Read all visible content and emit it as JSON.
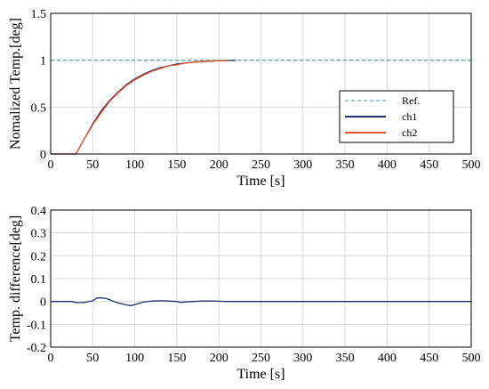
{
  "chart_data": [
    {
      "type": "line",
      "title": "",
      "xlabel": "Time [s]",
      "ylabel": "Nomalized Temp.[deg]",
      "xlim": [
        0,
        500
      ],
      "ylim": [
        0,
        1.5
      ],
      "xticks": [
        "0",
        "50",
        "100",
        "150",
        "200",
        "250",
        "300",
        "350",
        "400",
        "450",
        "500"
      ],
      "yticks": [
        "0",
        "0.5",
        "1",
        "1.5"
      ],
      "grid": true,
      "legend_position": "lower-right",
      "series": [
        {
          "name": "Ref.",
          "style": "dashed",
          "color": "#2f8f8f",
          "x": [
            0,
            500
          ],
          "y": [
            1,
            1
          ]
        },
        {
          "name": "ch1",
          "style": "solid",
          "color": "#1f2f6f",
          "x": [
            0,
            30,
            40,
            50,
            60,
            70,
            80,
            90,
            100,
            110,
            120,
            130,
            140,
            150,
            160,
            170,
            180,
            190,
            200,
            210,
            220
          ],
          "y": [
            0,
            0,
            0.16,
            0.32,
            0.46,
            0.57,
            0.66,
            0.74,
            0.8,
            0.85,
            0.89,
            0.92,
            0.94,
            0.96,
            0.97,
            0.98,
            0.985,
            0.99,
            0.995,
            0.997,
            1.0
          ]
        },
        {
          "name": "ch2",
          "style": "solid",
          "color": "#e0552a",
          "x": [
            0,
            30,
            40,
            50,
            60,
            70,
            80,
            90,
            100,
            110,
            120,
            130,
            140,
            150,
            160,
            170,
            180,
            190,
            200,
            210
          ],
          "y": [
            0,
            0,
            0.16,
            0.31,
            0.44,
            0.56,
            0.65,
            0.73,
            0.79,
            0.84,
            0.88,
            0.91,
            0.94,
            0.95,
            0.97,
            0.98,
            0.985,
            0.99,
            0.995,
            0.997
          ]
        }
      ]
    },
    {
      "type": "line",
      "title": "",
      "xlabel": "Time [s]",
      "ylabel": "Temp. difference[deg]",
      "xlim": [
        0,
        500
      ],
      "ylim": [
        -0.2,
        0.4
      ],
      "xticks": [
        "0",
        "50",
        "100",
        "150",
        "200",
        "250",
        "300",
        "350",
        "400",
        "450",
        "500"
      ],
      "yticks": [
        "-0.2",
        "-0.1",
        "0",
        "0.1",
        "0.2",
        "0.3",
        "0.4"
      ],
      "grid": true,
      "series": [
        {
          "style": "solid",
          "color": "#1f2f6f",
          "x": [
            0,
            25,
            30,
            40,
            45,
            50,
            55,
            60,
            65,
            70,
            75,
            80,
            90,
            95,
            100,
            105,
            110,
            120,
            130,
            140,
            150,
            155,
            160,
            170,
            180,
            190,
            200,
            210,
            220,
            230,
            300,
            400,
            500
          ],
          "y": [
            0,
            0,
            -0.005,
            -0.005,
            0.0,
            0.003,
            0.015,
            0.016,
            0.014,
            0.008,
            0.0,
            -0.006,
            -0.015,
            -0.018,
            -0.014,
            -0.008,
            -0.003,
            0.002,
            0.003,
            0.002,
            0.0,
            -0.004,
            -0.002,
            0.0,
            0.002,
            0.002,
            0.001,
            0.0,
            0.0,
            0.0,
            0.0,
            0.0,
            0.0
          ]
        }
      ]
    }
  ]
}
